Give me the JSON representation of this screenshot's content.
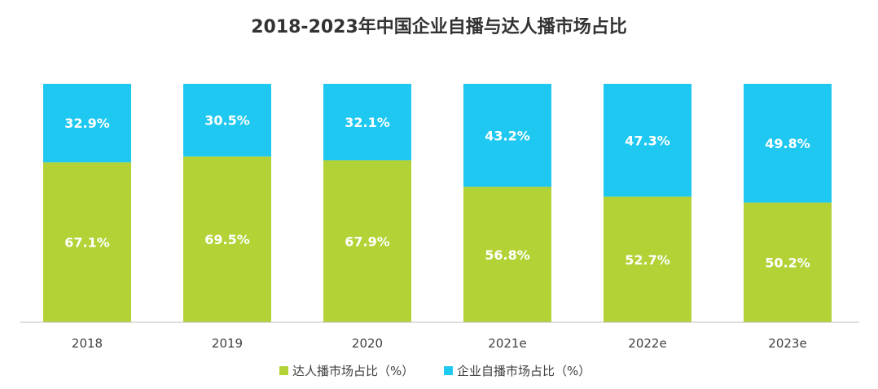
{
  "chart_data": {
    "type": "bar",
    "stacked": true,
    "percent_stacked": true,
    "title": "2018-2023年中国企业自播与达人播市场占比",
    "xlabel": "",
    "ylabel": "",
    "ylim": [
      0,
      100
    ],
    "grid": false,
    "legend_position": "bottom-center",
    "categories": [
      "2018",
      "2019",
      "2020",
      "2021e",
      "2022e",
      "2023e"
    ],
    "series": [
      {
        "name": "达人播市场占比（%）",
        "color": "#b2d235",
        "values": [
          67.1,
          69.5,
          67.9,
          56.8,
          52.7,
          50.2
        ],
        "labels": [
          "67.1%",
          "69.5%",
          "67.9%",
          "56.8%",
          "52.7%",
          "50.2%"
        ]
      },
      {
        "name": "企业自播市场占比（%）",
        "color": "#1fc8f0",
        "values": [
          32.9,
          30.5,
          32.1,
          43.2,
          47.3,
          49.8
        ],
        "labels": [
          "32.9%",
          "30.5%",
          "32.1%",
          "43.2%",
          "47.3%",
          "49.8%"
        ]
      }
    ]
  }
}
